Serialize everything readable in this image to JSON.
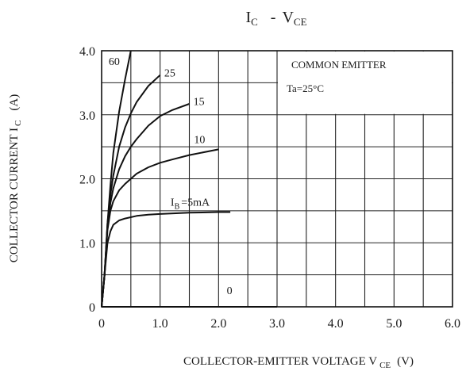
{
  "chart_data": {
    "type": "line",
    "title": {
      "main": "I",
      "main_sub": "C",
      "separator": "-",
      "var": "V",
      "var_sub": "CE"
    },
    "xlabel": {
      "text": "COLLECTOR-EMITTER VOLTAGE V",
      "sub": "CE",
      "unit": "(V)"
    },
    "ylabel": {
      "text": "COLLECTOR CURRENT I",
      "sub": "C",
      "unit": "(A)"
    },
    "xlim": [
      0,
      6
    ],
    "ylim": [
      0,
      4
    ],
    "x_ticks": [
      "0",
      "1.0",
      "2.0",
      "3.0",
      "4.0",
      "5.0",
      "6.0"
    ],
    "y_ticks": [
      "0",
      "1.0",
      "2.0",
      "3.0",
      "4.0"
    ],
    "grid": true,
    "grid_step_x": 0.5,
    "grid_step_y": 0.5,
    "annotation": {
      "line1": "COMMON EMITTER",
      "line2": "Ta=25°C"
    },
    "series": [
      {
        "name": "60",
        "label": "60",
        "x": [
          0,
          0.05,
          0.1,
          0.15,
          0.2,
          0.3,
          0.4,
          0.5
        ],
        "y": [
          0,
          0.5,
          1.3,
          1.9,
          2.4,
          3.05,
          3.55,
          4.0
        ]
      },
      {
        "name": "25",
        "label": "25",
        "x": [
          0,
          0.05,
          0.1,
          0.15,
          0.2,
          0.3,
          0.4,
          0.5,
          0.6,
          0.8,
          1.0
        ],
        "y": [
          0,
          0.5,
          1.3,
          1.75,
          2.05,
          2.5,
          2.8,
          3.02,
          3.2,
          3.45,
          3.62
        ]
      },
      {
        "name": "15",
        "label": "15",
        "x": [
          0,
          0.05,
          0.1,
          0.15,
          0.2,
          0.3,
          0.4,
          0.5,
          0.6,
          0.8,
          1.0,
          1.2,
          1.5
        ],
        "y": [
          0,
          0.5,
          1.25,
          1.62,
          1.85,
          2.15,
          2.35,
          2.5,
          2.62,
          2.83,
          2.98,
          3.07,
          3.17
        ]
      },
      {
        "name": "10",
        "label": "10",
        "x": [
          0,
          0.05,
          0.1,
          0.15,
          0.2,
          0.3,
          0.4,
          0.5,
          0.6,
          0.8,
          1.0,
          1.2,
          1.5,
          2.0
        ],
        "y": [
          0,
          0.5,
          1.2,
          1.5,
          1.65,
          1.82,
          1.92,
          2.0,
          2.08,
          2.18,
          2.25,
          2.3,
          2.37,
          2.46
        ]
      },
      {
        "name": "5mA",
        "label": "=5mA",
        "label_prefix": "I",
        "label_sub": "B",
        "x": [
          0,
          0.05,
          0.1,
          0.15,
          0.2,
          0.3,
          0.4,
          0.6,
          0.8,
          1.0,
          1.5,
          2.0,
          2.2
        ],
        "y": [
          0,
          0.5,
          1.0,
          1.18,
          1.28,
          1.35,
          1.38,
          1.42,
          1.44,
          1.45,
          1.47,
          1.48,
          1.48
        ]
      },
      {
        "name": "0",
        "label": "0",
        "x": [
          0,
          3.0
        ],
        "y": [
          0,
          0
        ]
      }
    ]
  }
}
